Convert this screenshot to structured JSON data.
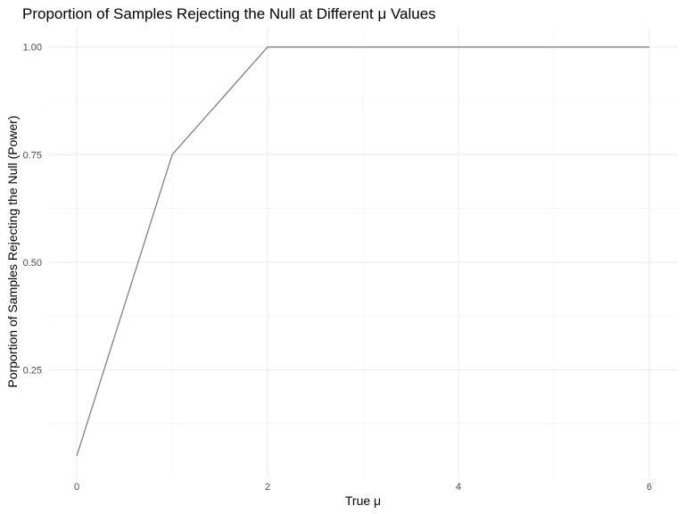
{
  "chart_data": {
    "type": "line",
    "title": "Proportion of Samples Rejecting the Null at Different μ Values",
    "xlabel": "True μ",
    "ylabel": "Porportion of Samples Rejecting the Null (Power)",
    "x": [
      0,
      1,
      2,
      3,
      4,
      5,
      6
    ],
    "series": [
      {
        "values": [
          0.05,
          0.75,
          1.0,
          1.0,
          1.0,
          1.0,
          1.0
        ],
        "color": "#808080"
      }
    ],
    "xlim": [
      -0.3,
      6.3
    ],
    "ylim": [
      0.0,
      1.045
    ],
    "x_ticks": [
      0,
      2,
      4,
      6
    ],
    "x_tick_labels": [
      "0",
      "2",
      "4",
      "6"
    ],
    "x_minor_ticks": [
      1,
      3,
      5
    ],
    "y_ticks": [
      0.25,
      0.5,
      0.75,
      1.0
    ],
    "y_tick_labels": [
      "0.25",
      "0.50",
      "0.75",
      "1.00"
    ],
    "y_minor_ticks": [
      0.125,
      0.375,
      0.625,
      0.875
    ],
    "grid": true,
    "legend": "none"
  }
}
